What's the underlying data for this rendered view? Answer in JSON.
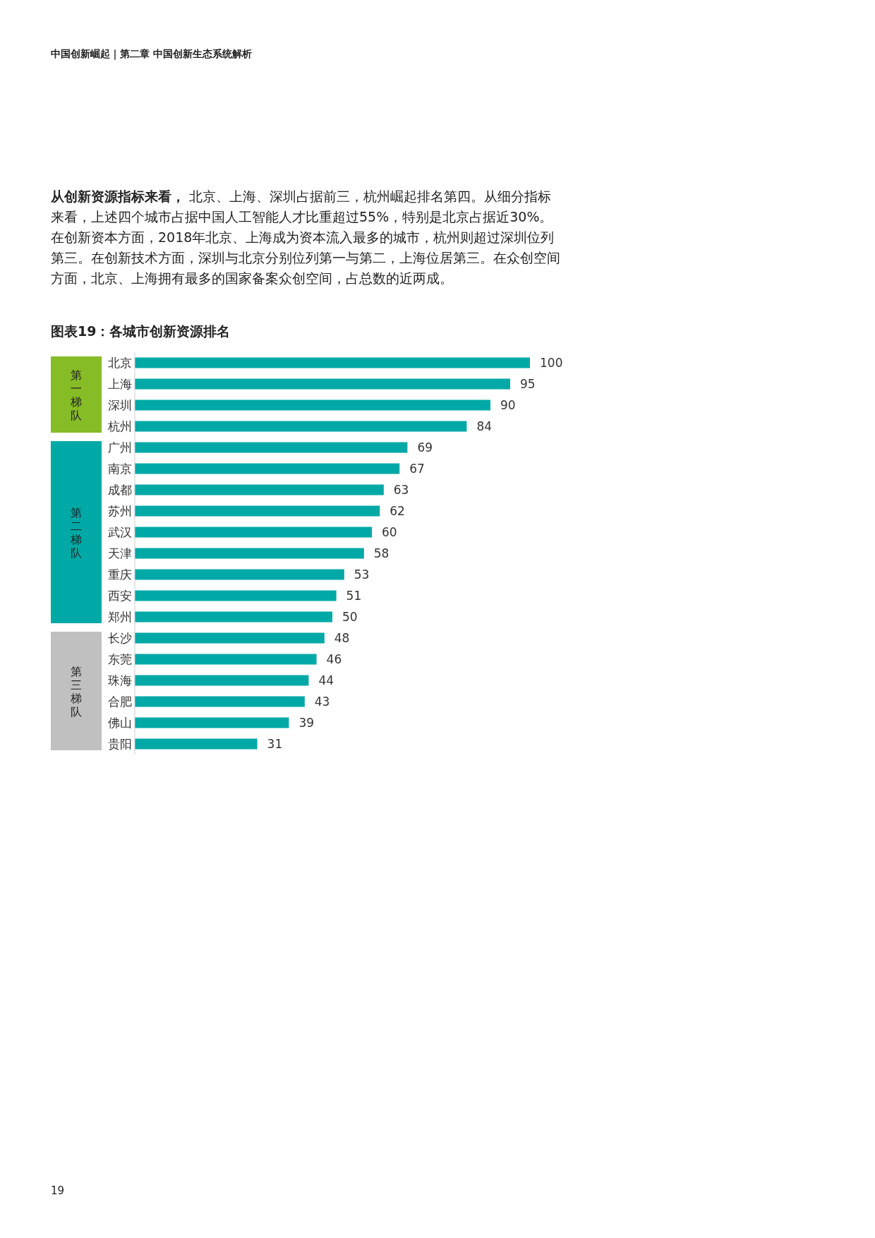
{
  "chart_data": {
    "type": "bar",
    "orientation": "horizontal",
    "title": "图表19：各城市创新资源排名",
    "categories": [
      "北京",
      "上海",
      "深圳",
      "杭州",
      "广州",
      "南京",
      "成都",
      "苏州",
      "武汉",
      "天津",
      "重庆",
      "西安",
      "郑州",
      "长沙",
      "东莞",
      "珠海",
      "合肥",
      "佛山",
      "贵阳"
    ],
    "values": [
      100,
      95,
      90,
      84,
      69,
      67,
      63,
      62,
      60,
      58,
      53,
      51,
      50,
      48,
      46,
      44,
      43,
      39,
      31
    ],
    "color": "#00a9a6",
    "data_labels": true,
    "annotations": [
      "中国创新崛起｜第二章 中国创新生态系统解析",
      "从创新资源指标来看，",
      "北京、上海、深圳占据前三，杭州崛起排名第四。从细分指标来看，上述四个城市占据中国人工智能人才比重超过55%，特别是北京占据近30%。在创新资本方面，2018年北京、上海成为资本流入最多的城市，杭州则超过深圳位列第三。在创新技术方面，深圳与北京分别位列第一与第二，上海位居第三。在众创空间方面，北京、上海拥有最多的国家备案众创空间，占总数的近两成。",
      "19",
      "第一梯队",
      "第二梯队",
      "第三梯队"
    ]
  }
}
